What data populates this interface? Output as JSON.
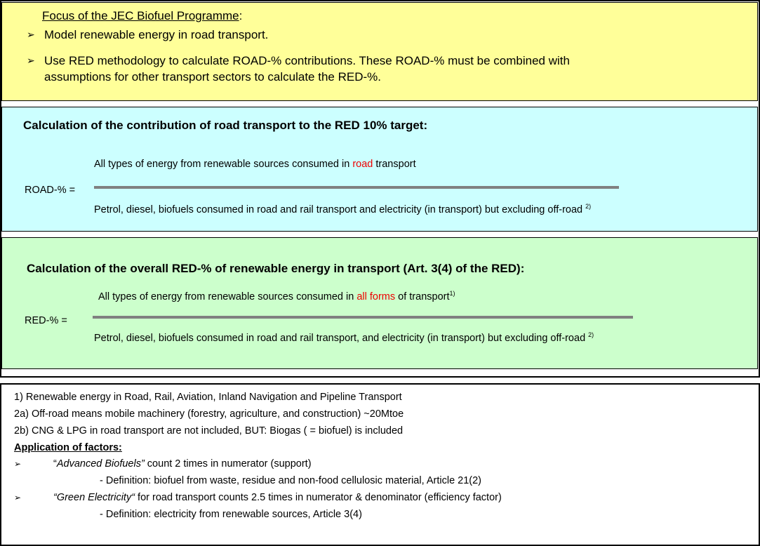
{
  "focus": {
    "title": "Focus of the JEC Biofuel Programme",
    "title_suffix": ":",
    "bullets": [
      "Model renewable energy in road transport.",
      "Use RED methodology to calculate ROAD-% contributions. These ROAD-% must be combined with",
      "assumptions for other transport sectors to calculate the RED-%."
    ]
  },
  "road": {
    "heading": "Calculation of the contribution of road transport to the RED 10% target:",
    "label": "ROAD-% =",
    "numerator": [
      "All types of energy from renewable sources consumed in ",
      "road",
      " transport"
    ],
    "denominator": "Petrol, diesel, biofuels consumed in road and rail transport and electricity (in transport) but excluding off-road ",
    "denominator_note": "2)"
  },
  "red": {
    "heading": "Calculation of the overall RED-% of renewable energy in transport (Art. 3(4) of the RED):",
    "label": "RED-% =",
    "numerator": [
      "All types of energy from renewable sources consumed in ",
      "all forms",
      " of transport"
    ],
    "numerator_note": "1)",
    "denominator": "Petrol, diesel, biofuels consumed in road and rail transport, and electricity (in transport) but excluding off-road ",
    "denominator_note": "2)"
  },
  "notes": {
    "items": [
      "1) Renewable energy in Road, Rail, Aviation, Inland Navigation and Pipeline Transport",
      "2a) Off-road means mobile machinery (forestry, agriculture, and construction) ~20Mtoe",
      "2b) CNG & LPG in road transport are not included, BUT: Biogas ( = biofuel) is included"
    ],
    "factors_heading": "Application of factors:",
    "factors": [
      {
        "prefix": "“",
        "em": "Advanced Biofuels”",
        "text": " count 2 times in numerator (support)",
        "definition": "- Definition: biofuel from waste, residue and non-food cellulosic material, Article 21(2)"
      },
      {
        "em": "“Green Electricity“",
        "text": " for road transport counts 2.5 times in numerator & denominator (efficiency factor)",
        "definition": "- Definition: electricity from renewable sources, Article 3(4)"
      }
    ]
  }
}
